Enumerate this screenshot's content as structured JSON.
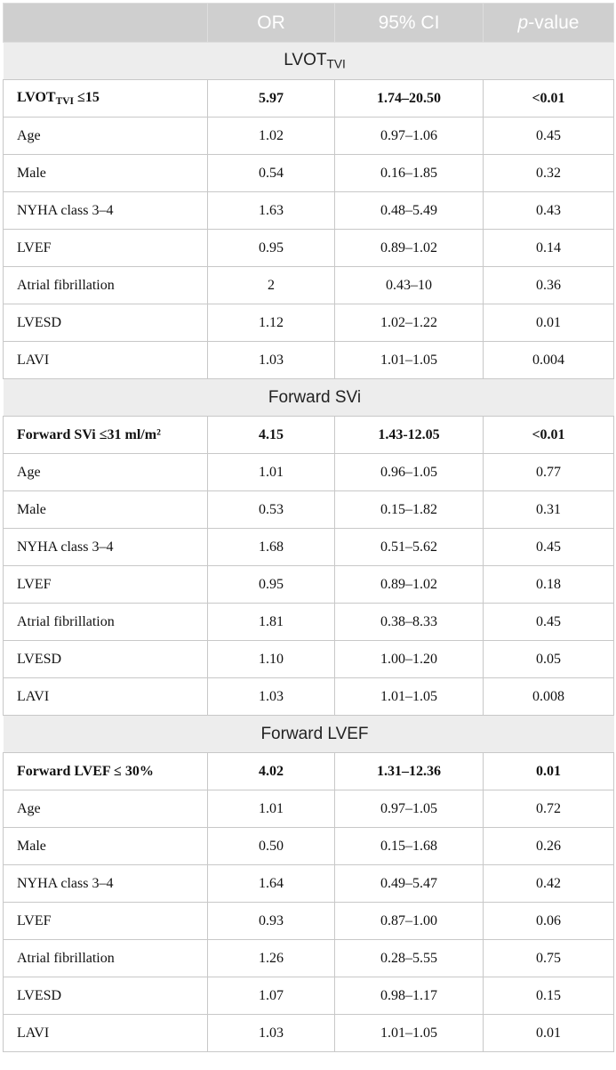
{
  "header": {
    "col1": "",
    "col2": "OR",
    "col3": "95% CI",
    "col4_italic": "p",
    "col4_rest": "-value"
  },
  "sections": [
    {
      "title_main": "LVOT",
      "title_sub": "TVI",
      "lead": {
        "label_main": "LVOT",
        "label_sub": "TVI",
        "label_rest": " ≤15",
        "or": "5.97",
        "ci": "1.74–20.50",
        "p": "<0.01"
      },
      "rows": [
        {
          "label": "Age",
          "or": "1.02",
          "ci": "0.97–1.06",
          "p": "0.45"
        },
        {
          "label": "Male",
          "or": "0.54",
          "ci": "0.16–1.85",
          "p": "0.32"
        },
        {
          "label": "NYHA class 3–4",
          "or": "1.63",
          "ci": "0.48–5.49",
          "p": "0.43"
        },
        {
          "label": "LVEF",
          "or": "0.95",
          "ci": "0.89–1.02",
          "p": "0.14"
        },
        {
          "label": "Atrial fibrillation",
          "or": "2",
          "ci": "0.43–10",
          "p": "0.36"
        },
        {
          "label": "LVESD",
          "or": "1.12",
          "ci": "1.02–1.22",
          "p": "0.01"
        },
        {
          "label": "LAVI",
          "or": "1.03",
          "ci": "1.01–1.05",
          "p": "0.004"
        }
      ]
    },
    {
      "title_main": "Forward SVi",
      "title_sub": "",
      "lead": {
        "label_main": "Forward SVi ≤31 ml/m²",
        "label_sub": "",
        "label_rest": "",
        "or": "4.15",
        "ci": "1.43-12.05",
        "p": "<0.01"
      },
      "rows": [
        {
          "label": "Age",
          "or": "1.01",
          "ci": "0.96–1.05",
          "p": "0.77"
        },
        {
          "label": "Male",
          "or": "0.53",
          "ci": "0.15–1.82",
          "p": "0.31"
        },
        {
          "label": "NYHA class 3–4",
          "or": "1.68",
          "ci": "0.51–5.62",
          "p": "0.45"
        },
        {
          "label": "LVEF",
          "or": "0.95",
          "ci": "0.89–1.02",
          "p": "0.18"
        },
        {
          "label": "Atrial fibrillation",
          "or": "1.81",
          "ci": "0.38–8.33",
          "p": "0.45"
        },
        {
          "label": "LVESD",
          "or": "1.10",
          "ci": "1.00–1.20",
          "p": "0.05"
        },
        {
          "label": "LAVI",
          "or": "1.03",
          "ci": "1.01–1.05",
          "p": "0.008"
        }
      ]
    },
    {
      "title_main": "Forward LVEF",
      "title_sub": "",
      "lead": {
        "label_main": "Forward LVEF ≤ 30%",
        "label_sub": "",
        "label_rest": "",
        "or": "4.02",
        "ci": "1.31–12.36",
        "p": "0.01"
      },
      "rows": [
        {
          "label": "Age",
          "or": "1.01",
          "ci": "0.97–1.05",
          "p": "0.72"
        },
        {
          "label": "Male",
          "or": "0.50",
          "ci": "0.15–1.68",
          "p": "0.26"
        },
        {
          "label": "NYHA class 3–4",
          "or": "1.64",
          "ci": "0.49–5.47",
          "p": "0.42"
        },
        {
          "label": "LVEF",
          "or": "0.93",
          "ci": "0.87–1.00",
          "p": "0.06"
        },
        {
          "label": "Atrial fibrillation",
          "or": "1.26",
          "ci": "0.28–5.55",
          "p": "0.75"
        },
        {
          "label": "LVESD",
          "or": "1.07",
          "ci": "0.98–1.17",
          "p": "0.15"
        },
        {
          "label": "LAVI",
          "or": "1.03",
          "ci": "1.01–1.05",
          "p": "0.01"
        }
      ]
    }
  ]
}
